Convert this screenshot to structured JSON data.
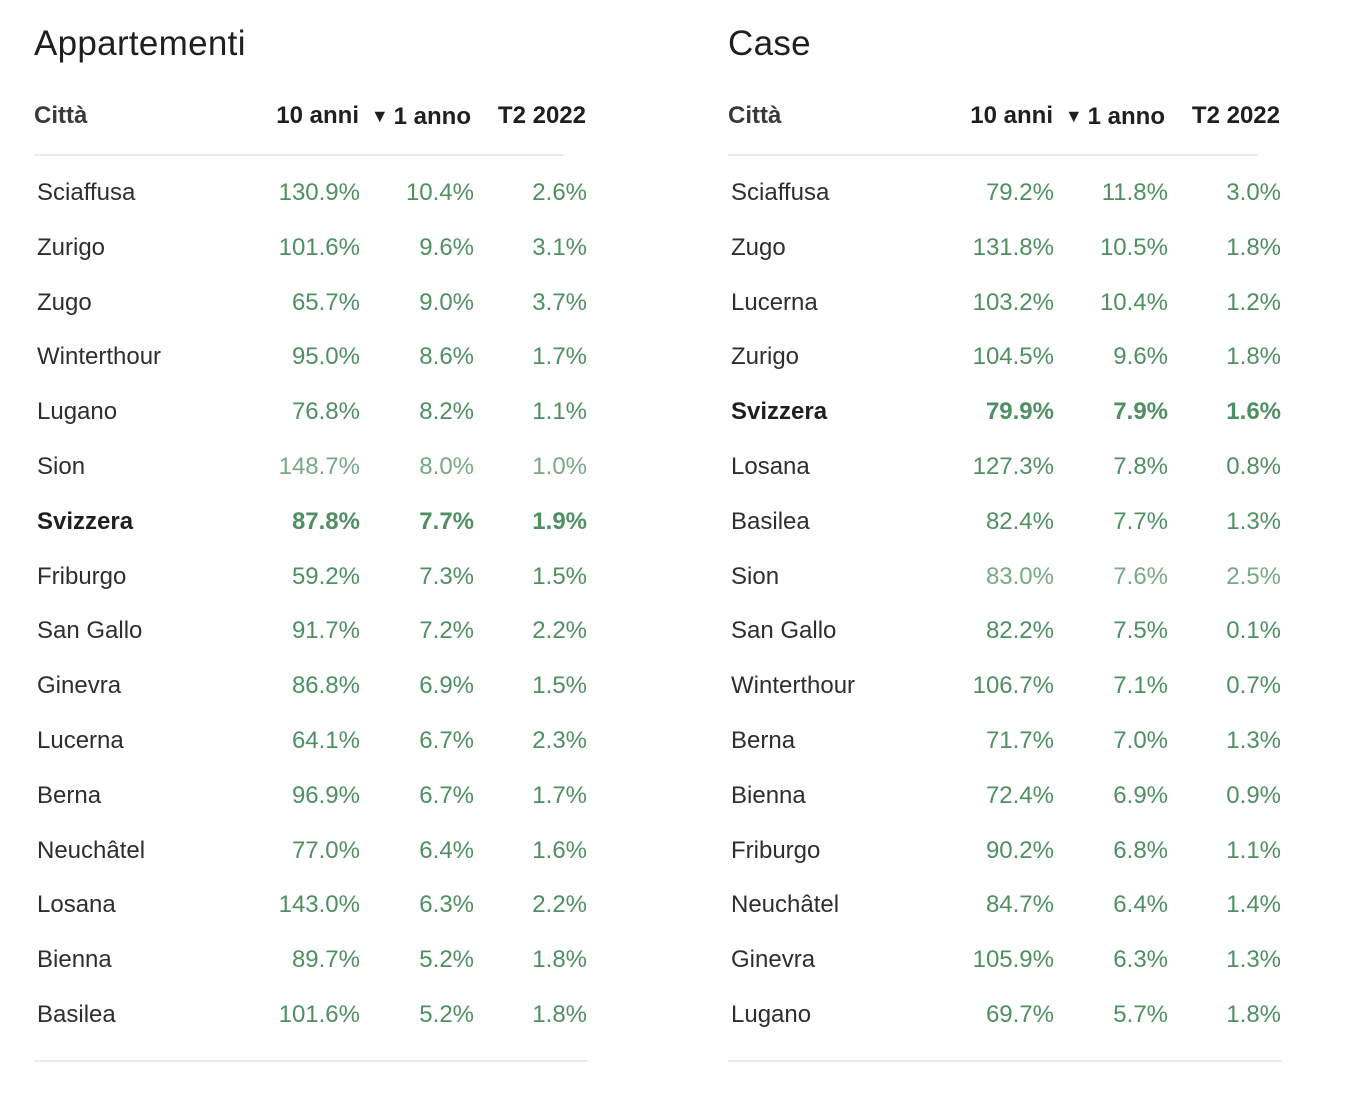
{
  "tables": [
    {
      "id": "left",
      "title": "Appartementi",
      "headers": {
        "city": "Città",
        "y10": "10 anni",
        "y1": "1 anno",
        "q": "T2 2022",
        "sort_indicator": "▼"
      },
      "rows": [
        {
          "city": "Sciaffusa",
          "y10": "130.9%",
          "y1": "10.4%",
          "q": "2.6%"
        },
        {
          "city": "Zurigo",
          "y10": "101.6%",
          "y1": "9.6%",
          "q": "3.1%"
        },
        {
          "city": "Zugo",
          "y10": "65.7%",
          "y1": "9.0%",
          "q": "3.7%"
        },
        {
          "city": "Winterthour",
          "y10": "95.0%",
          "y1": "8.6%",
          "q": "1.7%"
        },
        {
          "city": "Lugano",
          "y10": "76.8%",
          "y1": "8.2%",
          "q": "1.1%"
        },
        {
          "city": "Sion",
          "y10": "148.7%",
          "y1": "8.0%",
          "q": "1.0%",
          "light": true
        },
        {
          "city": "Svizzera",
          "y10": "87.8%",
          "y1": "7.7%",
          "q": "1.9%",
          "bold": true
        },
        {
          "city": "Friburgo",
          "y10": "59.2%",
          "y1": "7.3%",
          "q": "1.5%"
        },
        {
          "city": "San Gallo",
          "y10": "91.7%",
          "y1": "7.2%",
          "q": "2.2%"
        },
        {
          "city": "Ginevra",
          "y10": "86.8%",
          "y1": "6.9%",
          "q": "1.5%"
        },
        {
          "city": "Lucerna",
          "y10": "64.1%",
          "y1": "6.7%",
          "q": "2.3%"
        },
        {
          "city": "Berna",
          "y10": "96.9%",
          "y1": "6.7%",
          "q": "1.7%"
        },
        {
          "city": "Neuchâtel",
          "y10": "77.0%",
          "y1": "6.4%",
          "q": "1.6%"
        },
        {
          "city": "Losana",
          "y10": "143.0%",
          "y1": "6.3%",
          "q": "2.2%"
        },
        {
          "city": "Bienna",
          "y10": "89.7%",
          "y1": "5.2%",
          "q": "1.8%"
        },
        {
          "city": "Basilea",
          "y10": "101.6%",
          "y1": "5.2%",
          "q": "1.8%"
        }
      ]
    },
    {
      "id": "right",
      "title": "Case",
      "headers": {
        "city": "Città",
        "y10": "10 anni",
        "y1": "1 anno",
        "q": "T2 2022",
        "sort_indicator": "▼"
      },
      "rows": [
        {
          "city": "Sciaffusa",
          "y10": "79.2%",
          "y1": "11.8%",
          "q": "3.0%"
        },
        {
          "city": "Zugo",
          "y10": "131.8%",
          "y1": "10.5%",
          "q": "1.8%"
        },
        {
          "city": "Lucerna",
          "y10": "103.2%",
          "y1": "10.4%",
          "q": "1.2%"
        },
        {
          "city": "Zurigo",
          "y10": "104.5%",
          "y1": "9.6%",
          "q": "1.8%"
        },
        {
          "city": "Svizzera",
          "y10": "79.9%",
          "y1": "7.9%",
          "q": "1.6%",
          "bold": true
        },
        {
          "city": "Losana",
          "y10": "127.3%",
          "y1": "7.8%",
          "q": "0.8%"
        },
        {
          "city": "Basilea",
          "y10": "82.4%",
          "y1": "7.7%",
          "q": "1.3%"
        },
        {
          "city": "Sion",
          "y10": "83.0%",
          "y1": "7.6%",
          "q": "2.5%",
          "light": true
        },
        {
          "city": "San Gallo",
          "y10": "82.2%",
          "y1": "7.5%",
          "q": "0.1%"
        },
        {
          "city": "Winterthour",
          "y10": "106.7%",
          "y1": "7.1%",
          "q": "0.7%"
        },
        {
          "city": "Berna",
          "y10": "71.7%",
          "y1": "7.0%",
          "q": "1.3%"
        },
        {
          "city": "Bienna",
          "y10": "72.4%",
          "y1": "6.9%",
          "q": "0.9%"
        },
        {
          "city": "Friburgo",
          "y10": "90.2%",
          "y1": "6.8%",
          "q": "1.1%"
        },
        {
          "city": "Neuchâtel",
          "y10": "84.7%",
          "y1": "6.4%",
          "q": "1.4%"
        },
        {
          "city": "Ginevra",
          "y10": "105.9%",
          "y1": "6.3%",
          "q": "1.3%"
        },
        {
          "city": "Lugano",
          "y10": "69.7%",
          "y1": "5.7%",
          "q": "1.8%"
        }
      ]
    }
  ],
  "chart_data": [
    {
      "type": "table",
      "title": "Appartementi",
      "columns": [
        "Città",
        "10 anni",
        "1 anno",
        "T2 2022"
      ],
      "sorted_by": "1 anno",
      "rows": [
        [
          "Sciaffusa",
          "130.9%",
          "10.4%",
          "2.6%"
        ],
        [
          "Zurigo",
          "101.6%",
          "9.6%",
          "3.1%"
        ],
        [
          "Zugo",
          "65.7%",
          "9.0%",
          "3.7%"
        ],
        [
          "Winterthour",
          "95.0%",
          "8.6%",
          "1.7%"
        ],
        [
          "Lugano",
          "76.8%",
          "8.2%",
          "1.1%"
        ],
        [
          "Sion",
          "148.7%",
          "8.0%",
          "1.0%"
        ],
        [
          "Svizzera",
          "87.8%",
          "7.7%",
          "1.9%"
        ],
        [
          "Friburgo",
          "59.2%",
          "7.3%",
          "1.5%"
        ],
        [
          "San Gallo",
          "91.7%",
          "7.2%",
          "2.2%"
        ],
        [
          "Ginevra",
          "86.8%",
          "6.9%",
          "1.5%"
        ],
        [
          "Lucerna",
          "64.1%",
          "6.7%",
          "2.3%"
        ],
        [
          "Berna",
          "96.9%",
          "6.7%",
          "1.7%"
        ],
        [
          "Neuchâtel",
          "77.0%",
          "6.4%",
          "1.6%"
        ],
        [
          "Losana",
          "143.0%",
          "6.3%",
          "2.2%"
        ],
        [
          "Bienna",
          "89.7%",
          "5.2%",
          "1.8%"
        ],
        [
          "Basilea",
          "101.6%",
          "5.2%",
          "1.8%"
        ]
      ]
    },
    {
      "type": "table",
      "title": "Case",
      "columns": [
        "Città",
        "10 anni",
        "1 anno",
        "T2 2022"
      ],
      "sorted_by": "1 anno",
      "rows": [
        [
          "Sciaffusa",
          "79.2%",
          "11.8%",
          "3.0%"
        ],
        [
          "Zugo",
          "131.8%",
          "10.5%",
          "1.8%"
        ],
        [
          "Lucerna",
          "103.2%",
          "10.4%",
          "1.2%"
        ],
        [
          "Zurigo",
          "104.5%",
          "9.6%",
          "1.8%"
        ],
        [
          "Svizzera",
          "79.9%",
          "7.9%",
          "1.6%"
        ],
        [
          "Losana",
          "127.3%",
          "7.8%",
          "0.8%"
        ],
        [
          "Basilea",
          "82.4%",
          "7.7%",
          "1.3%"
        ],
        [
          "Sion",
          "83.0%",
          "7.6%",
          "2.5%"
        ],
        [
          "San Gallo",
          "82.2%",
          "7.5%",
          "0.1%"
        ],
        [
          "Winterthour",
          "106.7%",
          "7.1%",
          "0.7%"
        ],
        [
          "Berna",
          "71.7%",
          "7.0%",
          "1.3%"
        ],
        [
          "Bienna",
          "72.4%",
          "6.9%",
          "0.9%"
        ],
        [
          "Friburgo",
          "90.2%",
          "6.8%",
          "1.1%"
        ],
        [
          "Neuchâtel",
          "84.7%",
          "6.4%",
          "1.4%"
        ],
        [
          "Ginevra",
          "105.9%",
          "6.3%",
          "1.3%"
        ],
        [
          "Lugano",
          "69.7%",
          "5.7%",
          "1.8%"
        ]
      ]
    }
  ],
  "colors": {
    "value_green": "#4f8f62",
    "value_green_light": "#79a887",
    "rule": "#ececec"
  }
}
